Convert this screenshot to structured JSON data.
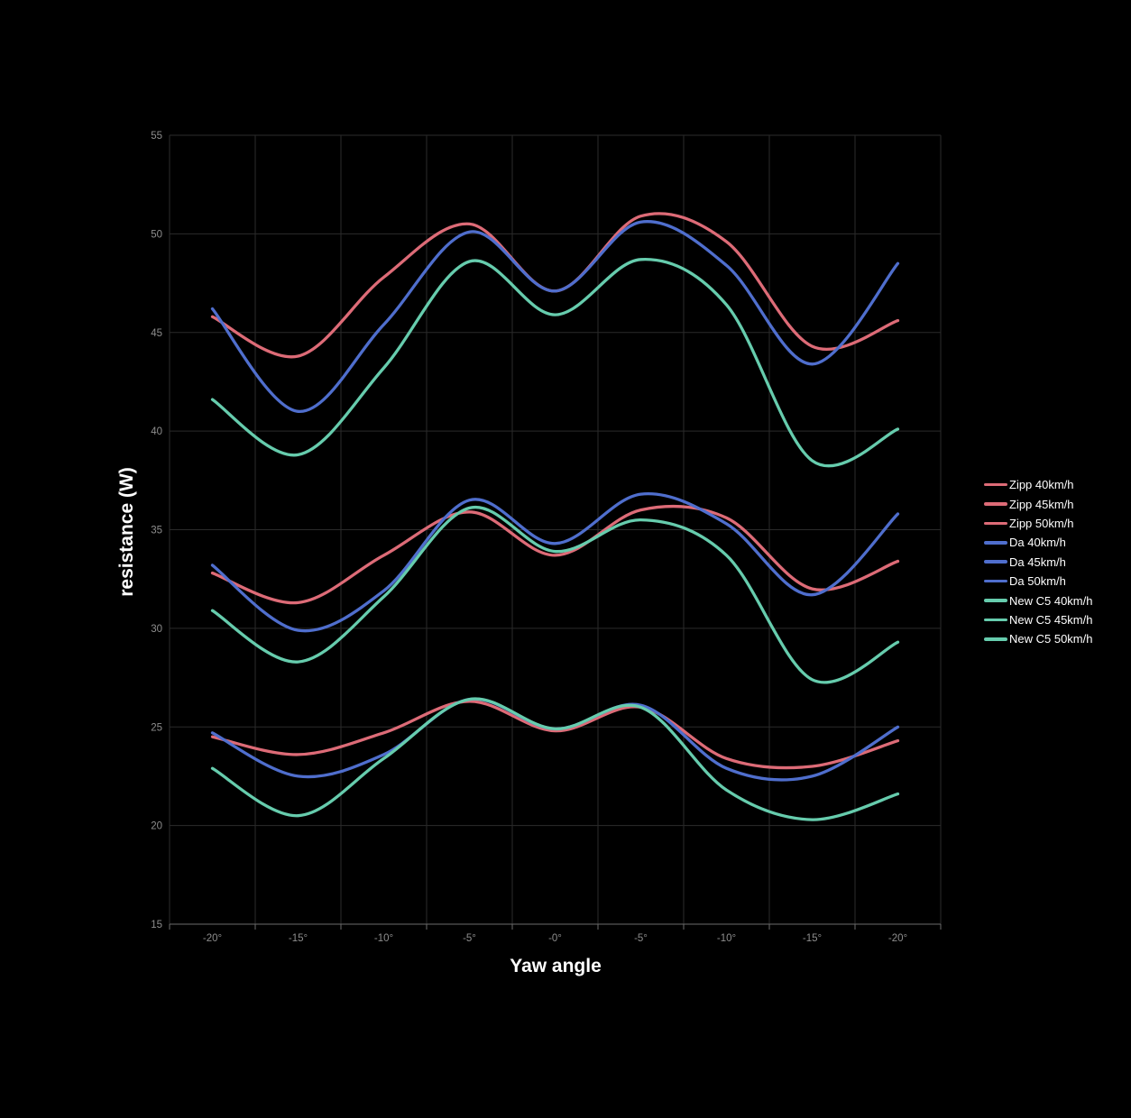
{
  "chart": {
    "x_title": "Yaw angle",
    "y_title": "resistance (W)"
  },
  "chart_data": {
    "type": "line",
    "title": "",
    "xlabel": "Yaw angle",
    "ylabel": "resistance (W)",
    "categories": [
      "-20°",
      "-15°",
      "-10°",
      "-5°",
      "-0°",
      "-5°",
      "-10°",
      "-15°",
      "-20°"
    ],
    "y_ticks": [
      15,
      20,
      25,
      30,
      35,
      40,
      45,
      50,
      55
    ],
    "ylim": [
      15,
      55
    ],
    "grid": true,
    "smooth": true,
    "legend_position": "right",
    "background": "#000000",
    "axis_label_color": "#8d8d8d",
    "grid_color": "#2b2b2b",
    "axis_line_color": "#6b6b6b",
    "series": [
      {
        "name": "Zipp 40km/h",
        "color": "#dd6b77",
        "values": [
          24.5,
          23.6,
          24.7,
          26.3,
          24.8,
          26.0,
          23.4,
          23.0,
          24.3
        ]
      },
      {
        "name": "Zipp 45km/h",
        "color": "#dd6b77",
        "values": [
          32.8,
          31.3,
          33.7,
          35.9,
          33.7,
          36.0,
          35.6,
          32.0,
          33.4
        ]
      },
      {
        "name": "Zipp 50km/h",
        "color": "#dd6b77",
        "values": [
          45.8,
          43.8,
          47.8,
          50.5,
          47.1,
          50.9,
          49.6,
          44.3,
          45.6
        ]
      },
      {
        "name": "Da 40km/h",
        "color": "#4f6ecd",
        "values": [
          24.7,
          22.5,
          23.6,
          26.4,
          24.9,
          26.1,
          22.9,
          22.5,
          25.0
        ]
      },
      {
        "name": "Da 45km/h",
        "color": "#4f6ecd",
        "values": [
          33.2,
          29.9,
          31.9,
          36.5,
          34.3,
          36.8,
          35.3,
          31.7,
          35.8
        ]
      },
      {
        "name": "Da 50km/h",
        "color": "#4f6ecd",
        "values": [
          46.2,
          41.0,
          45.4,
          50.1,
          47.1,
          50.6,
          48.4,
          43.4,
          48.5
        ]
      },
      {
        "name": "New C5 40km/h",
        "color": "#66ccad",
        "values": [
          22.9,
          20.5,
          23.4,
          26.4,
          24.9,
          26.0,
          21.8,
          20.3,
          21.6
        ]
      },
      {
        "name": "New C5 45km/h",
        "color": "#66ccad",
        "values": [
          30.9,
          28.3,
          31.6,
          36.1,
          33.9,
          35.5,
          33.7,
          27.4,
          29.3
        ]
      },
      {
        "name": "New C5 50km/h",
        "color": "#66ccad",
        "values": [
          41.6,
          38.8,
          43.2,
          48.6,
          45.9,
          48.7,
          46.4,
          38.5,
          40.1
        ]
      }
    ]
  }
}
